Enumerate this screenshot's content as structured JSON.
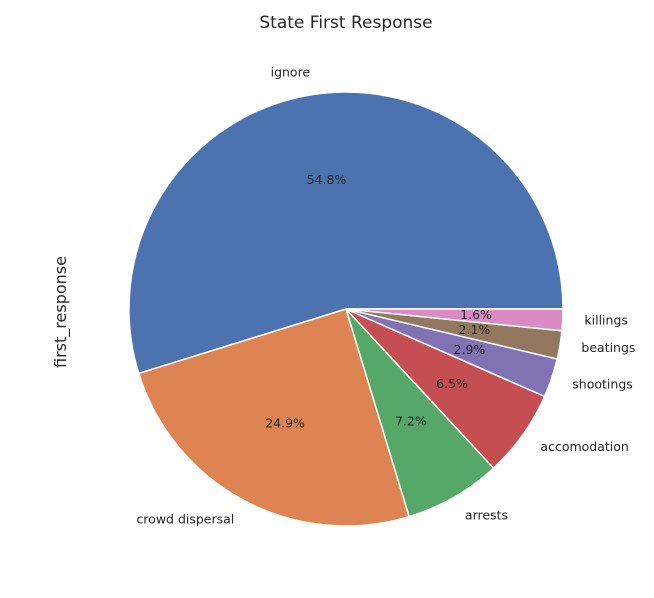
{
  "chart_data": {
    "type": "pie",
    "title": "State First Response",
    "ylabel": "first_response",
    "start_angle_deg": 0,
    "direction": "counterclockwise",
    "slices": [
      {
        "label": "ignore",
        "value": 54.8,
        "pct_label": "54.8%",
        "color": "#4c72b0"
      },
      {
        "label": "crowd dispersal",
        "value": 24.9,
        "pct_label": "24.9%",
        "color": "#dd8452"
      },
      {
        "label": "arrests",
        "value": 7.2,
        "pct_label": "7.2%",
        "color": "#55a868"
      },
      {
        "label": "accomodation",
        "value": 6.5,
        "pct_label": "6.5%",
        "color": "#c44e52"
      },
      {
        "label": "shootings",
        "value": 2.9,
        "pct_label": "2.9%",
        "color": "#8172b3"
      },
      {
        "label": "beatings",
        "value": 2.1,
        "pct_label": "2.1%",
        "color": "#937860"
      },
      {
        "label": "killings",
        "value": 1.6,
        "pct_label": "1.6%",
        "color": "#da8bc3"
      }
    ]
  }
}
